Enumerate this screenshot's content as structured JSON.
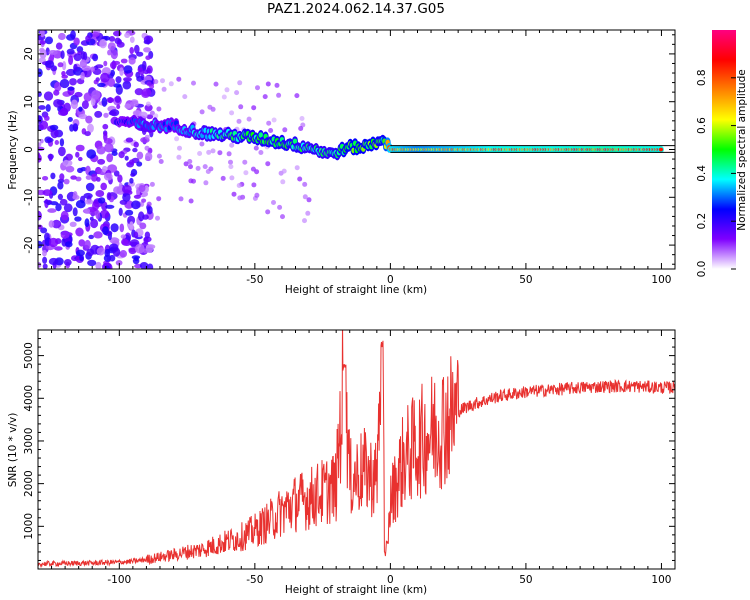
{
  "page_title": "PAZ1.2024.062.14.37.G05",
  "chart_data": [
    {
      "type": "heatmap",
      "xlabel": "Height of straight line (km)",
      "ylabel": "Frequency (Hz)",
      "xlim": [
        -130,
        105
      ],
      "ylim": [
        -25,
        25
      ],
      "xticks": [
        -100,
        -50,
        0,
        50,
        100
      ],
      "yticks": [
        -20,
        -10,
        0,
        10,
        20
      ],
      "colorbar": {
        "label": "Normalized spectral amplitude",
        "range": [
          0,
          1
        ],
        "ticks": [
          "0.0",
          "0.2",
          "0.4",
          "0.6",
          "0.8"
        ],
        "colormap": [
          "#ffffff",
          "#7f00ff",
          "#0000ff",
          "#00ffff",
          "#00ff00",
          "#ffff00",
          "#ff8000",
          "#ff0000",
          "#ff0080"
        ]
      },
      "ridge": {
        "height_km": [
          -100,
          -90,
          -80,
          -70,
          -60,
          -50,
          -40,
          -30,
          -22,
          -15,
          -10,
          -5,
          -3,
          0,
          10,
          20,
          40,
          60,
          80,
          100
        ],
        "frequency_hz": [
          6,
          5,
          5,
          3.5,
          3,
          2.5,
          1.5,
          0.5,
          -1,
          0.5,
          0.5,
          1.5,
          2.5,
          0,
          0,
          0,
          0,
          0,
          0,
          0
        ],
        "amplitude": [
          0.25,
          0.35,
          0.3,
          0.4,
          0.45,
          0.5,
          0.5,
          0.45,
          0.45,
          0.55,
          0.55,
          0.55,
          0.5,
          0.8,
          0.7,
          0.75,
          0.85,
          0.85,
          0.9,
          0.85
        ]
      }
    },
    {
      "type": "line",
      "xlabel": "Height of straight line (km)",
      "ylabel": "SNR (10 * v/v)",
      "xlim": [
        -130,
        105
      ],
      "ylim": [
        0,
        5600
      ],
      "xticks": [
        -100,
        -50,
        0,
        50,
        100
      ],
      "yticks": [
        1000,
        2000,
        3000,
        4000,
        5000
      ],
      "line_color": "#e8312f",
      "series": [
        {
          "x": [
            -130,
            -120,
            -110,
            -100,
            -95,
            -90,
            -85,
            -80,
            -75,
            -70,
            -65,
            -60,
            -55,
            -50,
            -45,
            -40,
            -35,
            -30,
            -25,
            -20,
            -17,
            -15,
            -10,
            -5,
            -3,
            -1,
            0,
            5,
            10,
            15,
            20,
            25,
            30,
            35,
            40,
            50,
            60,
            70,
            80,
            90,
            100,
            105
          ],
          "y": [
            120,
            130,
            140,
            160,
            180,
            220,
            280,
            330,
            400,
            450,
            550,
            650,
            750,
            900,
            1100,
            1350,
            1550,
            1650,
            1800,
            1950,
            4800,
            2100,
            2300,
            2100,
            5600,
            600,
            1600,
            2600,
            2900,
            3200,
            3450,
            3700,
            3850,
            3950,
            4050,
            4150,
            4200,
            4250,
            4280,
            4280,
            4250,
            4250
          ]
        }
      ]
    }
  ]
}
